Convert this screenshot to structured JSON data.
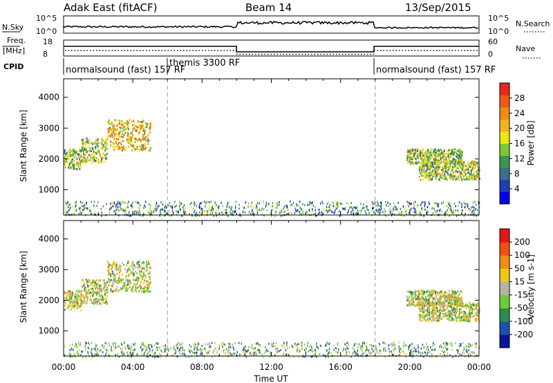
{
  "header": {
    "station": "Adak East (fitACF)",
    "beam": "Beam 14",
    "date": "13/Sep/2015"
  },
  "sky_panel": {
    "left_label": "N.Sky",
    "right_label": "N.Search",
    "left_ticks": [
      "10^5",
      "10^0"
    ],
    "right_ticks": [
      "10^5",
      "10^0"
    ]
  },
  "freq_panel": {
    "left_label_1": "Freq.",
    "left_label_2": "[MHz]",
    "right_label": "Nave",
    "left_ticks": [
      "18",
      "8"
    ],
    "right_ticks": [
      "60",
      "0"
    ]
  },
  "cpid": {
    "label": "CPID",
    "segments": [
      "normalsound (fast) 157 RF",
      "themis 3300 RF",
      "normalsound (fast) 157 RF"
    ]
  },
  "time_axis": {
    "label": "Time UT",
    "ticks": [
      "00:00",
      "04:00",
      "08:00",
      "12:00",
      "16:00",
      "20:00",
      "00:00"
    ]
  },
  "chart_data": [
    {
      "type": "heatmap",
      "title": "Power",
      "xlabel": "Time UT",
      "ylabel": "Slant Range [km]",
      "x_range_hours": [
        0,
        24
      ],
      "ylim": [
        180,
        4600
      ],
      "y_ticks": [
        1000,
        2000,
        3000,
        4000
      ],
      "colorbar": {
        "label": "Power [dB]",
        "ticks": [
          "4",
          "8",
          "12",
          "16",
          "20",
          "24",
          "28"
        ],
        "range": [
          0,
          30
        ],
        "colors": [
          "#0000ee",
          "#1e3cb4",
          "#3c6e8c",
          "#3c9650",
          "#7dc832",
          "#f0e614",
          "#f0b41e",
          "#f08c14",
          "#f05a14",
          "#e6281e"
        ]
      },
      "scatter_regions": [
        {
          "name": "early",
          "t0": 0.0,
          "t1": 1.0,
          "r0": 1700,
          "r1": 2350,
          "level": 0.45
        },
        {
          "name": "early-rise",
          "t0": 1.0,
          "t1": 2.5,
          "r0": 1900,
          "r1": 2700,
          "level": 0.5
        },
        {
          "name": "early-high",
          "t0": 2.5,
          "t1": 5.0,
          "r0": 2300,
          "r1": 3300,
          "level": 0.65
        },
        {
          "name": "dusk-upper",
          "t0": 19.8,
          "t1": 23.0,
          "r0": 1850,
          "r1": 2350,
          "level": 0.45
        },
        {
          "name": "dusk-lower",
          "t0": 20.5,
          "t1": 24.0,
          "r0": 1350,
          "r1": 1950,
          "level": 0.5
        }
      ],
      "near_range_band": {
        "r0": 180,
        "r1": 650,
        "level": 0.3
      },
      "timeline_markers_hours": [
        6.0,
        18.0
      ]
    },
    {
      "type": "heatmap",
      "title": "Velocity",
      "xlabel": "Time UT",
      "ylabel": "Slant Range [km]",
      "x_range_hours": [
        0,
        24
      ],
      "ylim": [
        180,
        4600
      ],
      "y_ticks": [
        1000,
        2000,
        3000,
        4000
      ],
      "colorbar": {
        "label": "Velocity [m s-1]",
        "ticks": [
          "200",
          "100",
          "50",
          "15",
          "-15",
          "-50",
          "-100",
          "-200"
        ],
        "range": [
          -250,
          250
        ],
        "colors": [
          "#0a14a0",
          "#1e50b4",
          "#2d8c4b",
          "#6ecd37",
          "#b4b4a5",
          "#f0c814",
          "#f08c14",
          "#f05014",
          "#e61414"
        ]
      },
      "scatter_regions": [
        {
          "name": "early",
          "t0": 0.0,
          "t1": 1.0,
          "r0": 1700,
          "r1": 2350,
          "level": 0.5
        },
        {
          "name": "early-rise",
          "t0": 1.0,
          "t1": 2.5,
          "r0": 1900,
          "r1": 2700,
          "level": 0.5
        },
        {
          "name": "early-high",
          "t0": 2.5,
          "t1": 5.0,
          "r0": 2300,
          "r1": 3300,
          "level": 0.5
        },
        {
          "name": "dusk-upper",
          "t0": 19.8,
          "t1": 23.0,
          "r0": 1850,
          "r1": 2350,
          "level": 0.5
        },
        {
          "name": "dusk-lower",
          "t0": 20.5,
          "t1": 24.0,
          "r0": 1350,
          "r1": 1950,
          "level": 0.5
        }
      ],
      "near_range_band": {
        "r0": 180,
        "r1": 650,
        "level": 0.35
      },
      "timeline_markers_hours": [
        6.0,
        18.0
      ]
    }
  ]
}
